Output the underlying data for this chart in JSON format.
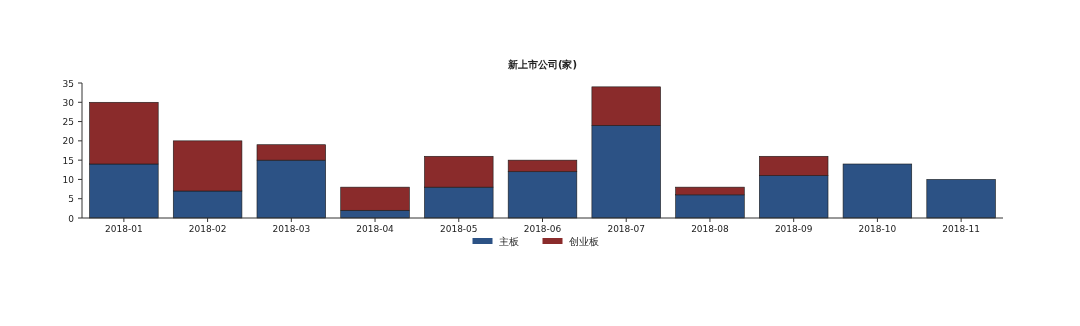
{
  "chart_data": {
    "type": "bar",
    "title": "新上市公司(家)",
    "stacked": true,
    "categories": [
      "2018-01",
      "2018-02",
      "2018-03",
      "2018-04",
      "2018-05",
      "2018-06",
      "2018-07",
      "2018-08",
      "2018-09",
      "2018-10",
      "2018-11"
    ],
    "series": [
      {
        "name": "主板",
        "color": "#2c5285",
        "values": [
          14,
          7,
          15,
          2,
          8,
          12,
          24,
          6,
          11,
          14,
          10
        ]
      },
      {
        "name": "创业板",
        "color": "#8a2b2b",
        "values": [
          16,
          13,
          4,
          6,
          8,
          3,
          10,
          2,
          5,
          0,
          0
        ]
      }
    ],
    "ylim": [
      0,
      35
    ],
    "yticks": [
      0,
      5,
      10,
      15,
      20,
      25,
      30,
      35
    ],
    "grid": false,
    "legend": "bottom"
  }
}
